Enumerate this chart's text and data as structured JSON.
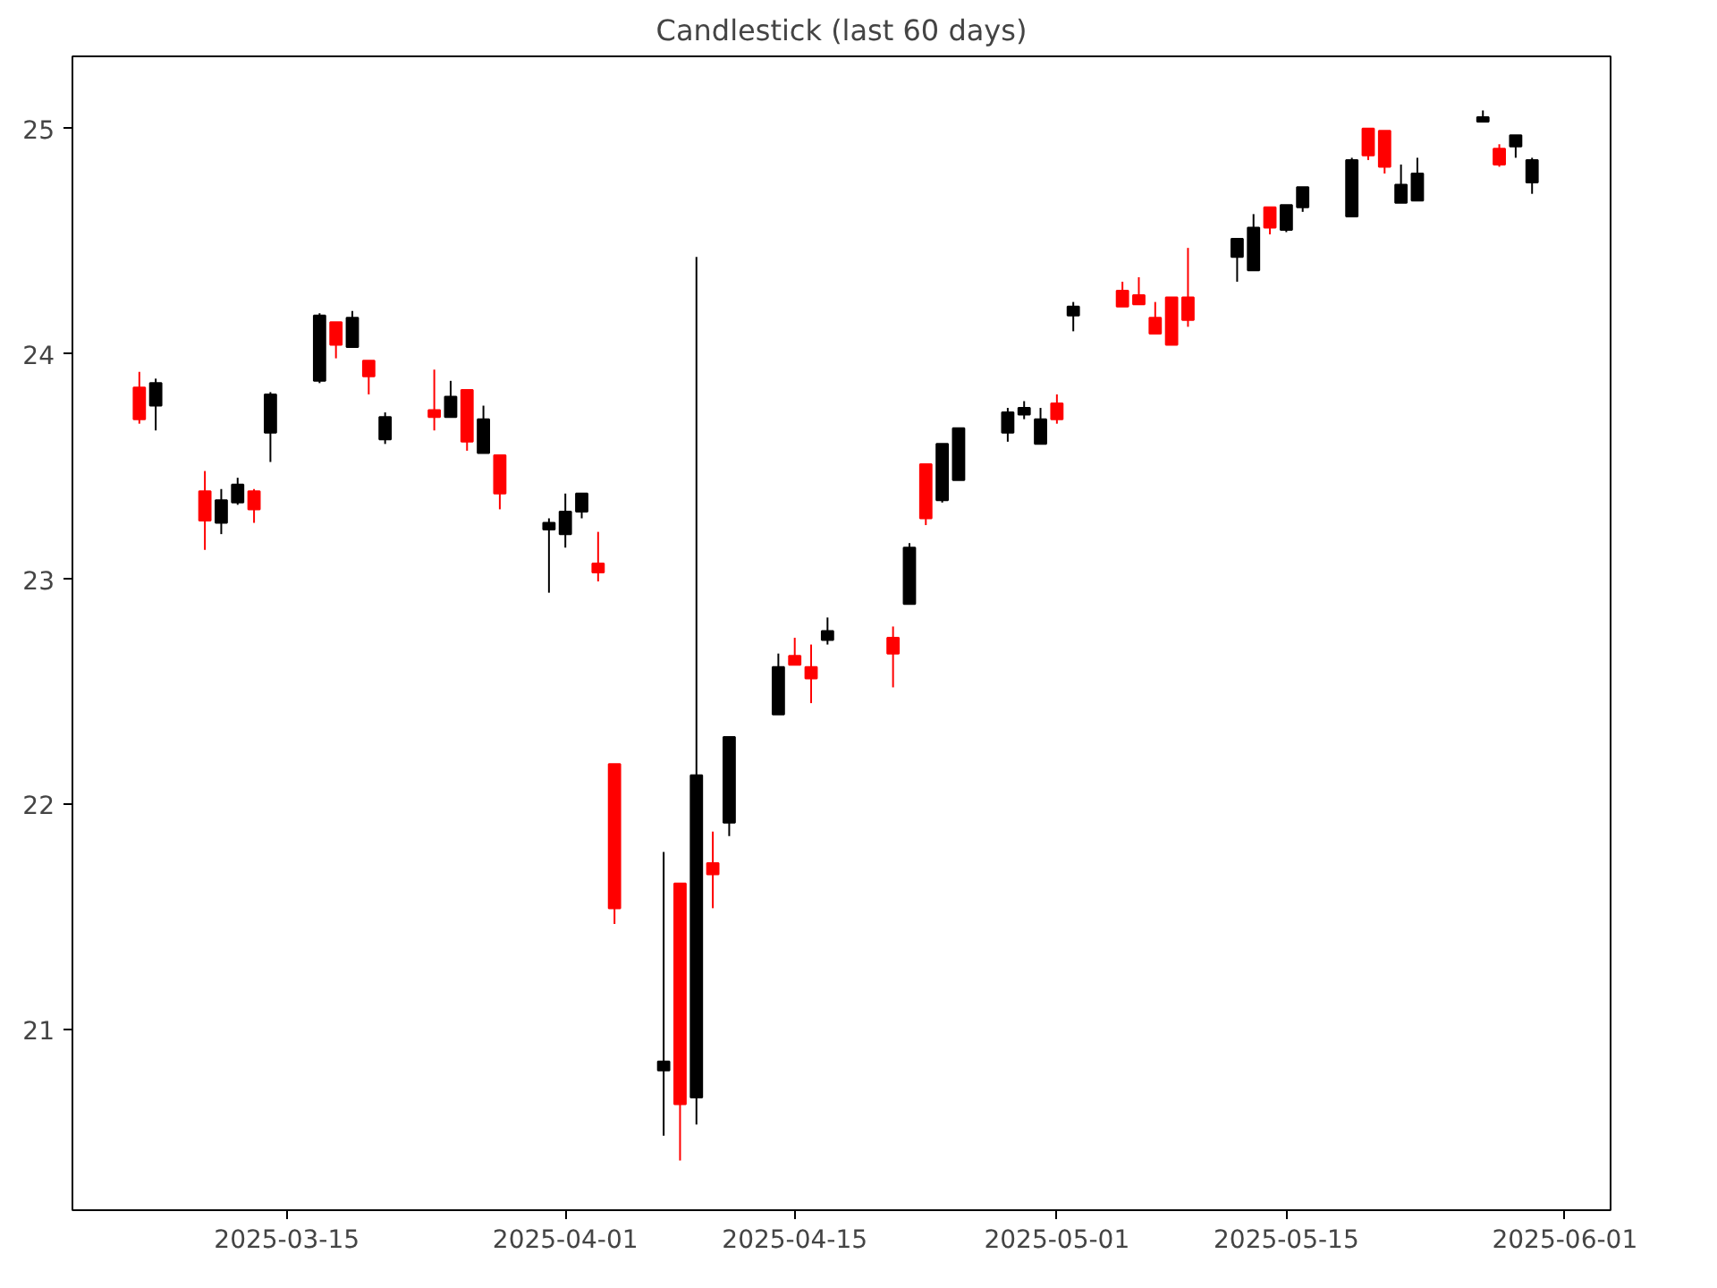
{
  "chart_data": {
    "type": "candlestick",
    "title": "Candlestick (last 60 days)",
    "x": [
      "2025-03-06",
      "2025-03-07",
      "2025-03-10",
      "2025-03-11",
      "2025-03-12",
      "2025-03-13",
      "2025-03-14",
      "2025-03-17",
      "2025-03-18",
      "2025-03-19",
      "2025-03-20",
      "2025-03-21",
      "2025-03-24",
      "2025-03-25",
      "2025-03-26",
      "2025-03-27",
      "2025-03-28",
      "2025-03-31",
      "2025-04-01",
      "2025-04-02",
      "2025-04-03",
      "2025-04-04",
      "2025-04-07",
      "2025-04-08",
      "2025-04-09",
      "2025-04-10",
      "2025-04-11",
      "2025-04-14",
      "2025-04-15",
      "2025-04-16",
      "2025-04-17",
      "2025-04-21",
      "2025-04-22",
      "2025-04-23",
      "2025-04-24",
      "2025-04-25",
      "2025-04-28",
      "2025-04-29",
      "2025-04-30",
      "2025-05-01",
      "2025-05-02",
      "2025-05-05",
      "2025-05-06",
      "2025-05-07",
      "2025-05-08",
      "2025-05-09",
      "2025-05-12",
      "2025-05-13",
      "2025-05-14",
      "2025-05-15",
      "2025-05-16",
      "2025-05-19",
      "2025-05-20",
      "2025-05-21",
      "2025-05-22",
      "2025-05-23",
      "2025-05-27",
      "2025-05-28",
      "2025-05-29",
      "2025-05-30"
    ],
    "ohlc": [
      [
        23.85,
        23.92,
        23.69,
        23.71
      ],
      [
        23.77,
        23.89,
        23.66,
        23.87
      ],
      [
        23.39,
        23.48,
        23.13,
        23.26
      ],
      [
        23.25,
        23.4,
        23.2,
        23.35
      ],
      [
        23.34,
        23.45,
        23.33,
        23.42
      ],
      [
        23.39,
        23.4,
        23.25,
        23.31
      ],
      [
        23.65,
        23.83,
        23.52,
        23.82
      ],
      [
        23.88,
        24.18,
        23.87,
        24.17
      ],
      [
        24.14,
        24.14,
        23.98,
        24.04
      ],
      [
        24.03,
        24.19,
        24.03,
        24.16
      ],
      [
        23.97,
        23.97,
        23.82,
        23.9
      ],
      [
        23.62,
        23.74,
        23.6,
        23.72
      ],
      [
        23.75,
        23.93,
        23.66,
        23.72
      ],
      [
        23.72,
        23.88,
        23.72,
        23.81
      ],
      [
        23.84,
        23.84,
        23.57,
        23.61
      ],
      [
        23.56,
        23.77,
        23.56,
        23.71
      ],
      [
        23.55,
        23.55,
        23.31,
        23.38
      ],
      [
        23.22,
        23.27,
        22.94,
        23.25
      ],
      [
        23.2,
        23.38,
        23.14,
        23.3
      ],
      [
        23.3,
        23.38,
        23.27,
        23.38
      ],
      [
        23.07,
        23.21,
        22.99,
        23.03
      ],
      [
        22.18,
        22.18,
        21.47,
        21.54
      ],
      [
        20.82,
        21.79,
        20.53,
        20.86
      ],
      [
        21.65,
        21.65,
        20.42,
        20.67
      ],
      [
        20.7,
        24.43,
        20.58,
        22.13
      ],
      [
        21.74,
        21.88,
        21.54,
        21.69
      ],
      [
        21.92,
        22.3,
        21.86,
        22.3
      ],
      [
        22.4,
        22.67,
        22.4,
        22.61
      ],
      [
        22.66,
        22.74,
        22.62,
        22.62
      ],
      [
        22.61,
        22.71,
        22.45,
        22.56
      ],
      [
        22.73,
        22.83,
        22.71,
        22.77
      ],
      [
        22.74,
        22.79,
        22.52,
        22.67
      ],
      [
        22.89,
        23.16,
        22.89,
        23.14
      ],
      [
        23.51,
        23.51,
        23.24,
        23.27
      ],
      [
        23.35,
        23.6,
        23.34,
        23.6
      ],
      [
        23.44,
        23.67,
        23.44,
        23.67
      ],
      [
        23.65,
        23.76,
        23.61,
        23.74
      ],
      [
        23.73,
        23.79,
        23.71,
        23.76
      ],
      [
        23.6,
        23.76,
        23.6,
        23.71
      ],
      [
        23.78,
        23.82,
        23.69,
        23.71
      ],
      [
        24.17,
        24.23,
        24.1,
        24.21
      ],
      [
        24.28,
        24.32,
        24.21,
        24.21
      ],
      [
        24.26,
        24.34,
        24.22,
        24.22
      ],
      [
        24.16,
        24.23,
        24.09,
        24.09
      ],
      [
        24.25,
        24.25,
        24.04,
        24.04
      ],
      [
        24.25,
        24.47,
        24.12,
        24.15
      ],
      [
        24.43,
        24.51,
        24.32,
        24.51
      ],
      [
        24.37,
        24.62,
        24.37,
        24.56
      ],
      [
        24.65,
        24.65,
        24.53,
        24.56
      ],
      [
        24.55,
        24.66,
        24.54,
        24.66
      ],
      [
        24.65,
        24.74,
        24.63,
        24.74
      ],
      [
        24.61,
        24.87,
        24.61,
        24.86
      ],
      [
        25.0,
        25.0,
        24.86,
        24.88
      ],
      [
        24.99,
        24.99,
        24.8,
        24.83
      ],
      [
        24.67,
        24.84,
        24.67,
        24.75
      ],
      [
        24.68,
        24.87,
        24.68,
        24.8
      ],
      [
        25.03,
        25.08,
        25.03,
        25.05
      ],
      [
        24.91,
        24.93,
        24.83,
        24.84
      ],
      [
        24.92,
        24.97,
        24.87,
        24.97
      ],
      [
        24.76,
        24.87,
        24.71,
        24.86
      ]
    ],
    "colors": [
      "#ff0000",
      "#000000",
      "#ff0000",
      "#000000",
      "#000000",
      "#ff0000",
      "#000000",
      "#000000",
      "#ff0000",
      "#000000",
      "#ff0000",
      "#000000",
      "#ff0000",
      "#000000",
      "#ff0000",
      "#000000",
      "#ff0000",
      "#000000",
      "#000000",
      "#000000",
      "#ff0000",
      "#ff0000",
      "#000000",
      "#ff0000",
      "#000000",
      "#ff0000",
      "#000000",
      "#000000",
      "#ff0000",
      "#ff0000",
      "#000000",
      "#ff0000",
      "#000000",
      "#ff0000",
      "#000000",
      "#000000",
      "#000000",
      "#000000",
      "#000000",
      "#ff0000",
      "#000000",
      "#ff0000",
      "#ff0000",
      "#ff0000",
      "#ff0000",
      "#ff0000",
      "#000000",
      "#000000",
      "#ff0000",
      "#000000",
      "#000000",
      "#000000",
      "#ff0000",
      "#ff0000",
      "#000000",
      "#000000",
      "#000000",
      "#ff0000",
      "#000000",
      "#000000"
    ],
    "xlim": [
      "2025-03-01T22:00",
      "2025-06-03T19:00"
    ],
    "xticks": [
      "2025-03-15",
      "2025-04-01",
      "2025-04-15",
      "2025-05-01",
      "2025-05-15",
      "2025-06-01"
    ],
    "ylim": [
      20.2,
      25.32
    ],
    "yticks": [
      21,
      22,
      23,
      24,
      25
    ],
    "grid": false
  }
}
